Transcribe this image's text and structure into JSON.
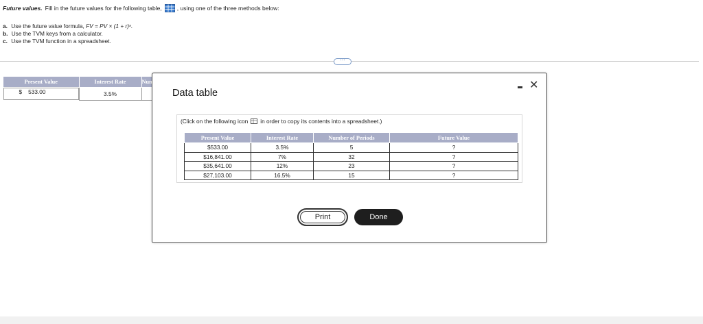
{
  "question": {
    "title": "Future values.",
    "text_before_icon": "Fill in the future values for the following table,",
    "text_after_icon": ", using one of the three methods below:",
    "methods": [
      {
        "letter": "a.",
        "text_prefix": "Use the future value formula,",
        "formula": "FV = PV × (1 + r)ⁿ."
      },
      {
        "letter": "b.",
        "text": "Use the TVM keys from a calculator."
      },
      {
        "letter": "c.",
        "text": "Use the TVM function in a spreadsheet."
      }
    ]
  },
  "more_button": "⋯",
  "background_table": {
    "headers": [
      "Present Value",
      "Interest Rate",
      "Numb"
    ],
    "row": {
      "currency": "$",
      "present_value": "533.00",
      "interest_rate": "3.5%"
    }
  },
  "modal": {
    "title": "Data table",
    "note_before": "(Click on the following icon",
    "note_after": "in order to copy its contents into a spreadsheet.)",
    "headers": [
      "Present Value",
      "Interest Rate",
      "Number of Periods",
      "Future Value"
    ],
    "rows": [
      [
        "$533.00",
        "3.5%",
        "5",
        "?"
      ],
      [
        "$16,841.00",
        "7%",
        "32",
        "?"
      ],
      [
        "$35,641.00",
        "12%",
        "23",
        "?"
      ],
      [
        "$27,103.00",
        "16.5%",
        "15",
        "?"
      ]
    ],
    "print_label": "Print",
    "done_label": "Done",
    "close_glyph": "✕"
  }
}
